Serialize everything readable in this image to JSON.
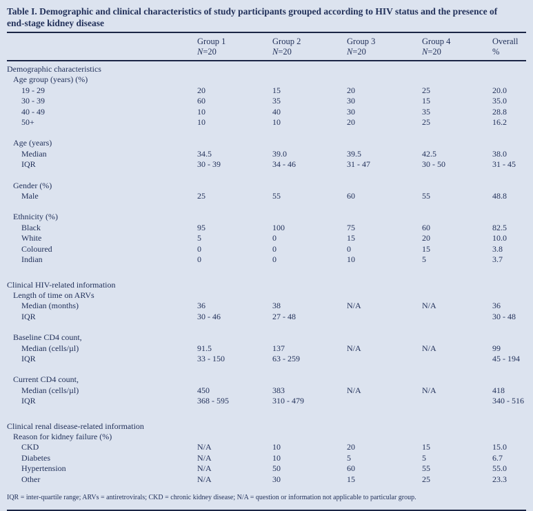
{
  "title_lines": [
    "Table I. Demographic and clinical characteristics of study participants grouped according to HIV status and the presence of",
    "end-stage kidney disease"
  ],
  "columns": [
    {
      "name": "Group 1",
      "n": "N=20"
    },
    {
      "name": "Group 2",
      "n": "N=20"
    },
    {
      "name": "Group 3",
      "n": "N=20"
    },
    {
      "name": "Group 4",
      "n": "N=20"
    },
    {
      "name": "Overall",
      "n": "%"
    }
  ],
  "rows": [
    {
      "type": "section",
      "label": "Demographic characteristics"
    },
    {
      "type": "sub",
      "label": "Age group (years) (%)"
    },
    {
      "type": "item",
      "label": "19 - 29",
      "values": [
        "20",
        "15",
        "20",
        "25",
        "20.0"
      ]
    },
    {
      "type": "item",
      "label": "30 - 39",
      "values": [
        "60",
        "35",
        "30",
        "15",
        "35.0"
      ]
    },
    {
      "type": "item",
      "label": "40 - 49",
      "values": [
        "10",
        "40",
        "30",
        "35",
        "28.8"
      ]
    },
    {
      "type": "item",
      "label": "50+",
      "values": [
        "10",
        "10",
        "20",
        "25",
        "16.2"
      ]
    },
    {
      "type": "blank"
    },
    {
      "type": "sub",
      "label": "Age (years)"
    },
    {
      "type": "item",
      "label": "Median",
      "values": [
        "34.5",
        "39.0",
        "39.5",
        "42.5",
        "38.0"
      ]
    },
    {
      "type": "item",
      "label": "IQR",
      "values": [
        "30 - 39",
        "34 - 46",
        "31 - 47",
        "30 - 50",
        "31 - 45"
      ]
    },
    {
      "type": "blank"
    },
    {
      "type": "sub",
      "label": "Gender (%)"
    },
    {
      "type": "item",
      "label": "Male",
      "values": [
        "25",
        "55",
        "60",
        "55",
        "48.8"
      ]
    },
    {
      "type": "blank"
    },
    {
      "type": "sub",
      "label": "Ethnicity (%)"
    },
    {
      "type": "item",
      "label": "Black",
      "values": [
        "95",
        "100",
        "75",
        "60",
        "82.5"
      ]
    },
    {
      "type": "item",
      "label": "White",
      "values": [
        "5",
        "0",
        "15",
        "20",
        "10.0"
      ]
    },
    {
      "type": "item",
      "label": "Coloured",
      "values": [
        "0",
        "0",
        "0",
        "15",
        "3.8"
      ]
    },
    {
      "type": "item",
      "label": "Indian",
      "values": [
        "0",
        "0",
        "10",
        "5",
        "3.7"
      ]
    },
    {
      "type": "blank"
    },
    {
      "type": "section",
      "label": "Clinical HIV-related information"
    },
    {
      "type": "sub",
      "label": "Length of time on ARVs"
    },
    {
      "type": "item",
      "label": "Median (months)",
      "values": [
        "36",
        "38",
        "N/A",
        "N/A",
        "36"
      ]
    },
    {
      "type": "item",
      "label": "IQR",
      "values": [
        "30 - 46",
        "27 - 48",
        "",
        "",
        "30 - 48"
      ]
    },
    {
      "type": "blank"
    },
    {
      "type": "sub",
      "label": "Baseline CD4 count,"
    },
    {
      "type": "item",
      "label": "Median (cells/µl)",
      "values": [
        "91.5",
        "137",
        "N/A",
        "N/A",
        "99"
      ]
    },
    {
      "type": "item",
      "label": "IQR",
      "values": [
        "33 - 150",
        "63 - 259",
        "",
        "",
        "45 - 194"
      ]
    },
    {
      "type": "blank"
    },
    {
      "type": "sub",
      "label": "Current CD4 count,"
    },
    {
      "type": "item",
      "label": "Median (cells/µl)",
      "values": [
        "450",
        "383",
        "N/A",
        "N/A",
        "418"
      ]
    },
    {
      "type": "item",
      "label": "IQR",
      "values": [
        "368 - 595",
        "310 - 479",
        "",
        "",
        "340 - 516"
      ]
    },
    {
      "type": "blank"
    },
    {
      "type": "section",
      "label": "Clinical renal disease-related information"
    },
    {
      "type": "sub",
      "label": "Reason for kidney failure (%)"
    },
    {
      "type": "item",
      "label": "CKD",
      "values": [
        "N/A",
        "10",
        "20",
        "15",
        "15.0"
      ]
    },
    {
      "type": "item",
      "label": "Diabetes",
      "values": [
        "N/A",
        "10",
        "5",
        "5",
        "6.7"
      ]
    },
    {
      "type": "item",
      "label": "Hypertension",
      "values": [
        "N/A",
        "50",
        "60",
        "55",
        "55.0"
      ]
    },
    {
      "type": "item",
      "label": "Other",
      "values": [
        "N/A",
        "30",
        "15",
        "25",
        "23.3"
      ]
    }
  ],
  "footnote": "IQR = inter-quartile range; ARVs = antiretrovirals; CKD = chronic kidney disease; N/A = question or information not applicable to particular group.",
  "colors": {
    "background": "#dce3ef",
    "text": "#22315a",
    "rule": "#1b2545"
  }
}
